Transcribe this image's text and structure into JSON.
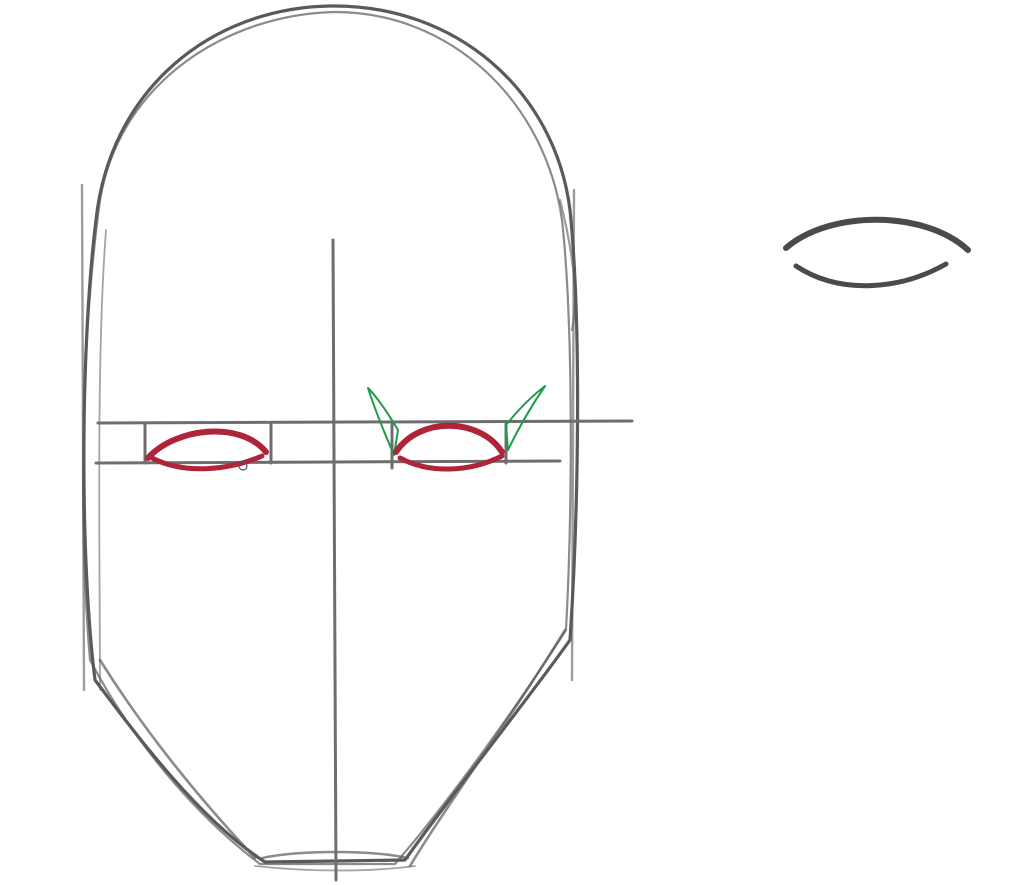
{
  "drawing": {
    "subject": "head-proportion-sketch",
    "colors": {
      "background": "#ffffff",
      "construction_stroke": "#6e6e6e",
      "outline_stroke": "#5a5a5a",
      "eye_stroke": "#b0243a",
      "accent_stroke": "#1e9a4a",
      "reference_eye_stroke": "#4a4a4a"
    }
  }
}
